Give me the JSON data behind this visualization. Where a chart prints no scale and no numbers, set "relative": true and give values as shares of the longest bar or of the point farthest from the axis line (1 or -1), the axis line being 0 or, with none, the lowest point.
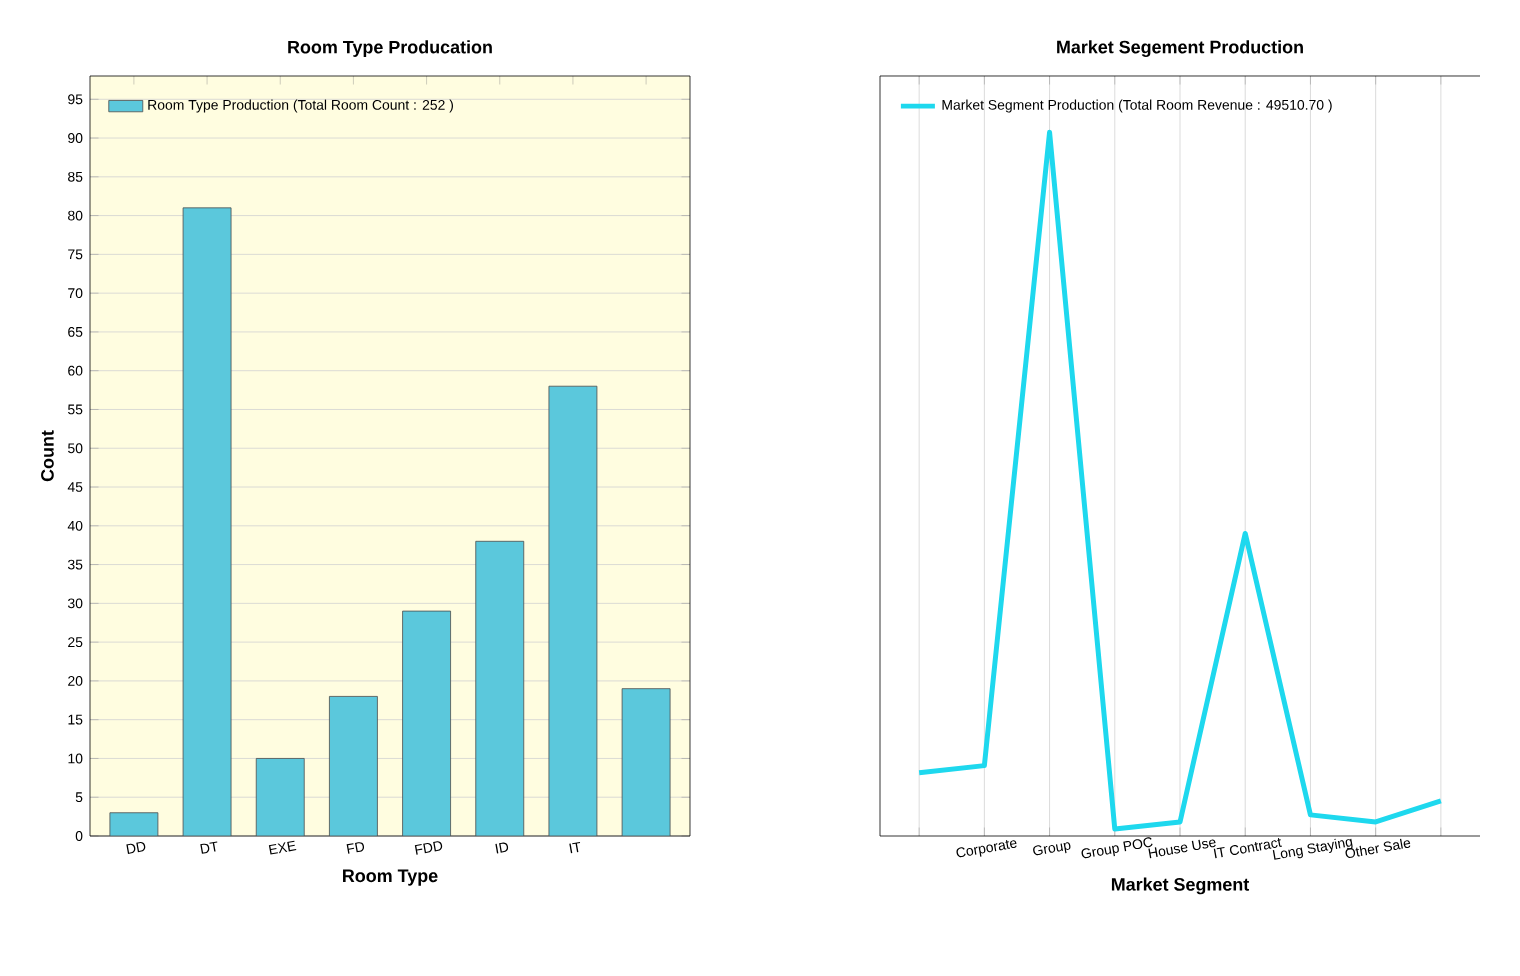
{
  "chart_data": [
    {
      "type": "bar",
      "title": "Room Type Producation",
      "xlabel": "Room Type",
      "ylabel": "Count",
      "categories": [
        "DD",
        "DT",
        "EXE",
        "FD",
        "FDD",
        "ID",
        "IT",
        null
      ],
      "series": [
        {
          "name": "Room Type Production  (Total Room Count : 252 )",
          "color": "#5bc8dc",
          "values": [
            3,
            81,
            10,
            18,
            29,
            38,
            58,
            19
          ]
        }
      ],
      "ylim": [
        0,
        98
      ],
      "yticks": [
        0,
        5,
        10,
        15,
        20,
        25,
        30,
        35,
        40,
        45,
        50,
        55,
        60,
        65,
        70,
        75,
        80,
        85,
        90,
        95
      ],
      "grid": "y",
      "legend": "top left"
    },
    {
      "type": "line",
      "title": "Market Segement Production",
      "xlabel": "Market Segment",
      "categories": [
        null,
        "Corporate",
        "Group",
        "Group POC",
        "House Use",
        "IT Contract",
        "Long Staying",
        "Other Sale",
        null
      ],
      "series": [
        {
          "name": "Market Segment Production  (Total Room Revenue : 49510.70 )",
          "color": "#1ed8ee",
          "values": [
            0.09,
            0.1,
            1,
            0.01,
            0.02,
            0.43,
            0.03,
            0.02,
            0.05
          ]
        }
      ],
      "relative": true,
      "grid": true,
      "legend": "top left",
      "marker": "none"
    }
  ]
}
